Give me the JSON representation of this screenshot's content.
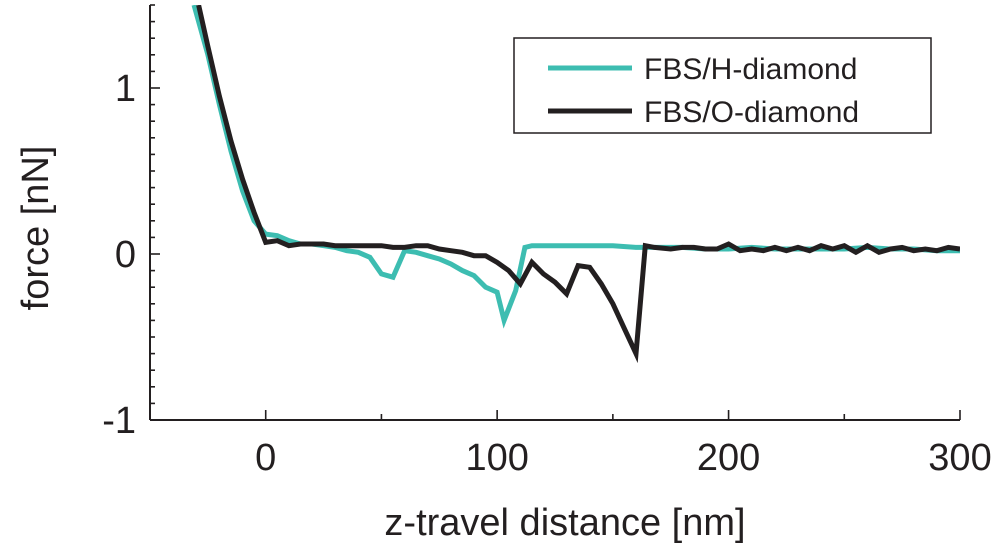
{
  "chart_data": {
    "type": "line",
    "title": "",
    "xlabel": "z-travel distance [nm]",
    "ylabel": "force [nN]",
    "xlim": [
      -50,
      300
    ],
    "ylim": [
      -1,
      1.5
    ],
    "x_ticks": [
      0,
      100,
      200,
      300
    ],
    "x_tick_labels": [
      "0",
      "100",
      "200",
      "300"
    ],
    "y_ticks": [
      -1,
      0,
      1
    ],
    "y_tick_labels": [
      "-1",
      "0",
      "1"
    ],
    "grid": false,
    "legend_position": "top-right",
    "series": [
      {
        "name": "FBS/H-diamond",
        "color": "#3dbdb1",
        "x": [
          -31,
          -25,
          -20,
          -15,
          -10,
          -5,
          0,
          5,
          10,
          15,
          20,
          25,
          30,
          35,
          40,
          45,
          50,
          55,
          60,
          65,
          70,
          75,
          80,
          85,
          90,
          95,
          100,
          103,
          108,
          112,
          115,
          120,
          130,
          140,
          150,
          160,
          170,
          180,
          190,
          200,
          210,
          220,
          230,
          240,
          250,
          260,
          270,
          280,
          290,
          300
        ],
        "y": [
          1.5,
          1.2,
          0.9,
          0.62,
          0.38,
          0.2,
          0.12,
          0.11,
          0.08,
          0.06,
          0.06,
          0.05,
          0.04,
          0.02,
          0.01,
          -0.02,
          -0.12,
          -0.14,
          0.02,
          0.01,
          -0.01,
          -0.03,
          -0.06,
          -0.1,
          -0.13,
          -0.2,
          -0.23,
          -0.4,
          -0.22,
          0.04,
          0.05,
          0.05,
          0.05,
          0.05,
          0.05,
          0.04,
          0.04,
          0.04,
          0.03,
          0.03,
          0.04,
          0.03,
          0.03,
          0.03,
          0.03,
          0.04,
          0.03,
          0.03,
          0.02,
          0.02
        ]
      },
      {
        "name": "FBS/O-diamond",
        "color": "#231f20",
        "x": [
          -29,
          -25,
          -20,
          -15,
          -10,
          -5,
          0,
          5,
          10,
          15,
          20,
          25,
          30,
          35,
          40,
          45,
          50,
          55,
          60,
          65,
          70,
          75,
          80,
          85,
          90,
          95,
          100,
          105,
          110,
          115,
          120,
          125,
          130,
          135,
          140,
          145,
          150,
          155,
          160,
          164,
          168,
          175,
          180,
          185,
          190,
          195,
          200,
          205,
          210,
          215,
          220,
          225,
          230,
          235,
          240,
          245,
          250,
          255,
          260,
          265,
          270,
          275,
          280,
          285,
          290,
          295,
          300
        ],
        "y": [
          1.5,
          1.25,
          0.95,
          0.68,
          0.45,
          0.25,
          0.07,
          0.08,
          0.05,
          0.06,
          0.06,
          0.06,
          0.05,
          0.05,
          0.05,
          0.05,
          0.05,
          0.04,
          0.04,
          0.05,
          0.05,
          0.03,
          0.02,
          0.01,
          -0.01,
          -0.01,
          -0.05,
          -0.1,
          -0.18,
          -0.05,
          -0.12,
          -0.17,
          -0.24,
          -0.07,
          -0.08,
          -0.18,
          -0.3,
          -0.45,
          -0.6,
          0.05,
          0.04,
          0.03,
          0.04,
          0.04,
          0.03,
          0.03,
          0.06,
          0.02,
          0.03,
          0.02,
          0.04,
          0.02,
          0.04,
          0.02,
          0.05,
          0.03,
          0.05,
          0.01,
          0.05,
          0.01,
          0.03,
          0.04,
          0.02,
          0.03,
          0.02,
          0.04,
          0.03
        ]
      }
    ]
  }
}
